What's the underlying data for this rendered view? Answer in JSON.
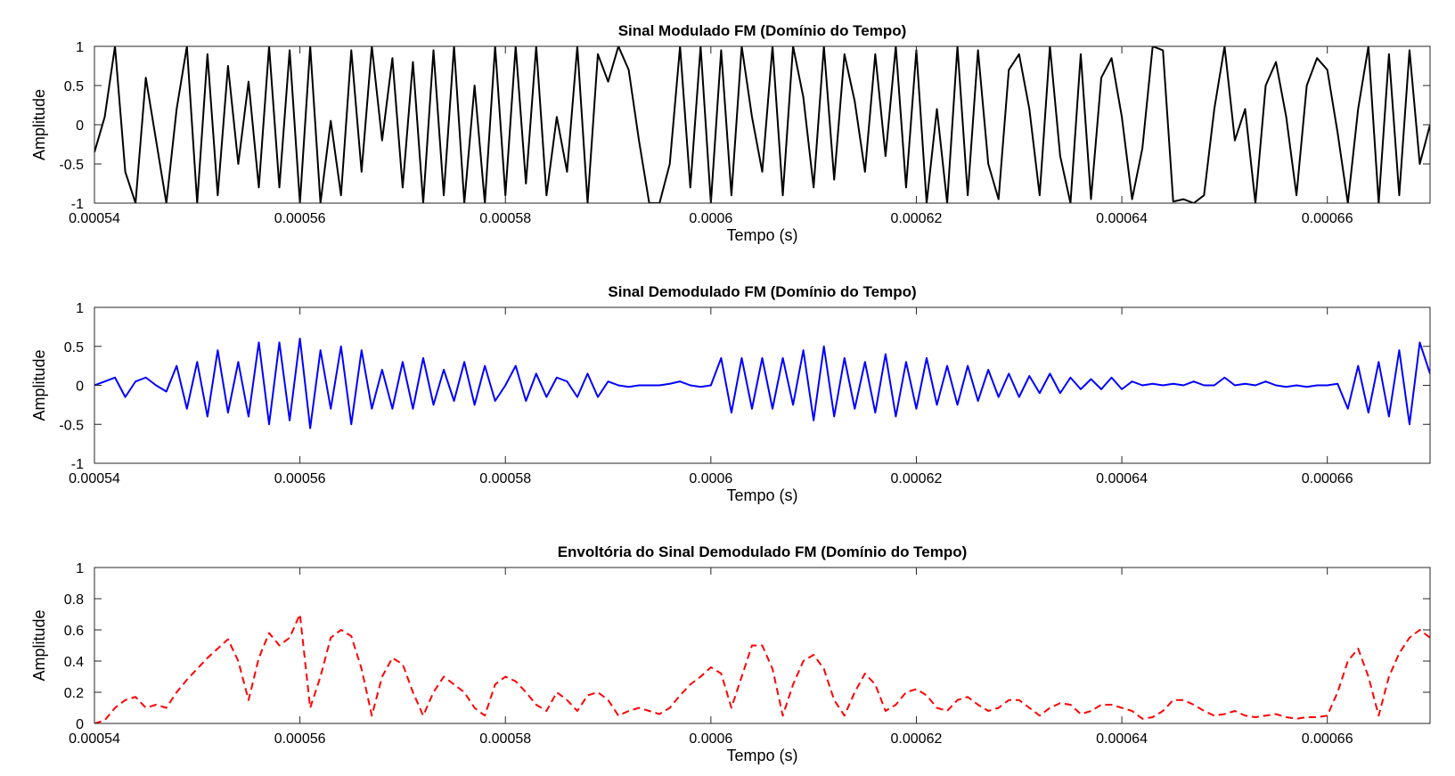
{
  "chart_data": [
    {
      "type": "line",
      "title": "Sinal Modulado FM (Domínio do Tempo)",
      "xlabel": "Tempo (s)",
      "ylabel": "Amplitude",
      "xlim": [
        0.00054,
        0.00067
      ],
      "ylim": [
        -1,
        1
      ],
      "x_ticks": [
        0.00054,
        0.00056,
        0.00058,
        0.0006,
        0.00062,
        0.00064,
        0.00066
      ],
      "x_tick_labels": [
        "0.00054",
        "0.00056",
        "0.00058",
        "0.0006",
        "0.00062",
        "0.00064",
        "0.00066"
      ],
      "y_ticks": [
        -1,
        -0.5,
        0,
        0.5,
        1
      ],
      "y_tick_labels": [
        "-1",
        "-0.5",
        "0",
        "0.5",
        "1"
      ],
      "grid": false,
      "series": [
        {
          "color": "#000000",
          "style": "solid",
          "x": [
            0.00054,
            0.000541,
            0.000542,
            0.000543,
            0.000544,
            0.000545,
            0.000546,
            0.000547,
            0.000548,
            0.000549,
            0.00055,
            0.000551,
            0.000552,
            0.000553,
            0.000554,
            0.000555,
            0.000556,
            0.000557,
            0.000558,
            0.000559,
            0.00056,
            0.000561,
            0.000562,
            0.000563,
            0.000564,
            0.000565,
            0.000566,
            0.000567,
            0.000568,
            0.000569,
            0.00057,
            0.000571,
            0.000572,
            0.000573,
            0.000574,
            0.000575,
            0.000576,
            0.000577,
            0.000578,
            0.000579,
            0.00058,
            0.000581,
            0.000582,
            0.000583,
            0.000584,
            0.000585,
            0.000586,
            0.000587,
            0.000588,
            0.000589,
            0.00059,
            0.000591,
            0.000592,
            0.000593,
            0.000594,
            0.000595,
            0.000596,
            0.000597,
            0.000598,
            0.000599,
            0.0006,
            0.000601,
            0.000602,
            0.000603,
            0.000604,
            0.000605,
            0.000606,
            0.000607,
            0.000608,
            0.000609,
            0.00061,
            0.000611,
            0.000612,
            0.000613,
            0.000614,
            0.000615,
            0.000616,
            0.000617,
            0.000618,
            0.000619,
            0.00062,
            0.000621,
            0.000622,
            0.000623,
            0.000624,
            0.000625,
            0.000626,
            0.000627,
            0.000628,
            0.000629,
            0.00063,
            0.000631,
            0.000632,
            0.000633,
            0.000634,
            0.000635,
            0.000636,
            0.000637,
            0.000638,
            0.000639,
            0.00064,
            0.000641,
            0.000642,
            0.000643,
            0.000644,
            0.000645,
            0.000646,
            0.000647,
            0.000648,
            0.000649,
            0.00065,
            0.000651,
            0.000652,
            0.000653,
            0.000654,
            0.000655,
            0.000656,
            0.000657,
            0.000658,
            0.000659,
            0.00066,
            0.000661,
            0.000662,
            0.000663,
            0.000664,
            0.000665,
            0.000666,
            0.000667,
            0.000668,
            0.000669,
            0.00067
          ],
          "y": [
            -0.35,
            0.1,
            1.0,
            -0.6,
            -1.0,
            0.6,
            -0.2,
            -1.0,
            0.2,
            1.0,
            -1.0,
            0.9,
            -0.9,
            0.75,
            -0.5,
            0.55,
            -0.8,
            1.0,
            -0.8,
            0.95,
            -1.0,
            1.0,
            -1.0,
            0.05,
            -0.9,
            0.95,
            -0.6,
            1.0,
            -0.2,
            0.85,
            -0.8,
            0.8,
            -1.0,
            0.95,
            -0.9,
            1.0,
            -1.0,
            0.5,
            -1.0,
            1.0,
            -0.9,
            1.0,
            -0.75,
            1.0,
            -0.9,
            0.1,
            -0.6,
            1.0,
            -1.0,
            0.9,
            0.55,
            1.0,
            0.7,
            -0.2,
            -1.0,
            -1.0,
            -0.5,
            1.0,
            -0.8,
            1.0,
            -1.0,
            0.95,
            -0.9,
            1.0,
            0.1,
            -0.6,
            1.0,
            -0.9,
            1.0,
            0.35,
            -0.8,
            1.0,
            -0.7,
            0.9,
            0.3,
            -0.6,
            0.9,
            -0.4,
            1.0,
            -0.8,
            0.95,
            -1.0,
            0.2,
            -1.0,
            1.0,
            -0.9,
            0.95,
            -0.5,
            -0.95,
            0.7,
            0.9,
            0.2,
            -0.9,
            1.0,
            -0.4,
            -1.0,
            0.9,
            -0.95,
            0.6,
            0.85,
            0.1,
            -0.95,
            -0.3,
            1.0,
            0.95,
            -0.98,
            -0.95,
            -1.0,
            -0.9,
            0.2,
            1.0,
            -0.2,
            0.2,
            -1.0,
            0.5,
            0.8,
            0.1,
            -0.9,
            0.5,
            0.85,
            0.7,
            -0.1,
            -1.0,
            0.2,
            1.0,
            -1.0,
            0.9,
            -0.9,
            0.95,
            -0.5,
            0.0
          ]
        }
      ]
    },
    {
      "type": "line",
      "title": "Sinal Demodulado FM (Domínio do Tempo)",
      "xlabel": "Tempo (s)",
      "ylabel": "Amplitude",
      "xlim": [
        0.00054,
        0.00067
      ],
      "ylim": [
        -1,
        1
      ],
      "x_ticks": [
        0.00054,
        0.00056,
        0.00058,
        0.0006,
        0.00062,
        0.00064,
        0.00066
      ],
      "x_tick_labels": [
        "0.00054",
        "0.00056",
        "0.00058",
        "0.0006",
        "0.00062",
        "0.00064",
        "0.00066"
      ],
      "y_ticks": [
        -1,
        -0.5,
        0,
        0.5,
        1
      ],
      "y_tick_labels": [
        "-1",
        "-0.5",
        "0",
        "0.5",
        "1"
      ],
      "grid": false,
      "series": [
        {
          "color": "#0000ff",
          "style": "solid",
          "x": [
            0.00054,
            0.000541,
            0.000542,
            0.000543,
            0.000544,
            0.000545,
            0.000546,
            0.000547,
            0.000548,
            0.000549,
            0.00055,
            0.000551,
            0.000552,
            0.000553,
            0.000554,
            0.000555,
            0.000556,
            0.000557,
            0.000558,
            0.000559,
            0.00056,
            0.000561,
            0.000562,
            0.000563,
            0.000564,
            0.000565,
            0.000566,
            0.000567,
            0.000568,
            0.000569,
            0.00057,
            0.000571,
            0.000572,
            0.000573,
            0.000574,
            0.000575,
            0.000576,
            0.000577,
            0.000578,
            0.000579,
            0.00058,
            0.000581,
            0.000582,
            0.000583,
            0.000584,
            0.000585,
            0.000586,
            0.000587,
            0.000588,
            0.000589,
            0.00059,
            0.000591,
            0.000592,
            0.000593,
            0.000594,
            0.000595,
            0.000596,
            0.000597,
            0.000598,
            0.000599,
            0.0006,
            0.000601,
            0.000602,
            0.000603,
            0.000604,
            0.000605,
            0.000606,
            0.000607,
            0.000608,
            0.000609,
            0.00061,
            0.000611,
            0.000612,
            0.000613,
            0.000614,
            0.000615,
            0.000616,
            0.000617,
            0.000618,
            0.000619,
            0.00062,
            0.000621,
            0.000622,
            0.000623,
            0.000624,
            0.000625,
            0.000626,
            0.000627,
            0.000628,
            0.000629,
            0.00063,
            0.000631,
            0.000632,
            0.000633,
            0.000634,
            0.000635,
            0.000636,
            0.000637,
            0.000638,
            0.000639,
            0.00064,
            0.000641,
            0.000642,
            0.000643,
            0.000644,
            0.000645,
            0.000646,
            0.000647,
            0.000648,
            0.000649,
            0.00065,
            0.000651,
            0.000652,
            0.000653,
            0.000654,
            0.000655,
            0.000656,
            0.000657,
            0.000658,
            0.000659,
            0.00066,
            0.000661,
            0.000662,
            0.000663,
            0.000664,
            0.000665,
            0.000666,
            0.000667,
            0.000668,
            0.000669,
            0.00067
          ],
          "y": [
            0.0,
            0.05,
            0.1,
            -0.15,
            0.05,
            0.1,
            0.0,
            -0.08,
            0.25,
            -0.3,
            0.3,
            -0.4,
            0.45,
            -0.35,
            0.3,
            -0.4,
            0.55,
            -0.5,
            0.55,
            -0.45,
            0.6,
            -0.55,
            0.45,
            -0.3,
            0.5,
            -0.5,
            0.45,
            -0.3,
            0.2,
            -0.3,
            0.3,
            -0.3,
            0.35,
            -0.25,
            0.2,
            -0.2,
            0.3,
            -0.25,
            0.25,
            -0.2,
            0.0,
            0.25,
            -0.2,
            0.15,
            -0.15,
            0.1,
            0.05,
            -0.15,
            0.15,
            -0.15,
            0.05,
            0.0,
            -0.02,
            0.0,
            0.0,
            0.0,
            0.02,
            0.05,
            0.0,
            -0.02,
            0.0,
            0.35,
            -0.35,
            0.35,
            -0.3,
            0.35,
            -0.3,
            0.35,
            -0.25,
            0.45,
            -0.45,
            0.5,
            -0.4,
            0.35,
            -0.3,
            0.3,
            -0.35,
            0.4,
            -0.4,
            0.3,
            -0.3,
            0.35,
            -0.25,
            0.25,
            -0.25,
            0.25,
            -0.2,
            0.2,
            -0.15,
            0.15,
            -0.15,
            0.12,
            -0.1,
            0.15,
            -0.1,
            0.1,
            -0.05,
            0.08,
            -0.05,
            0.1,
            -0.05,
            0.05,
            0.0,
            0.02,
            0.0,
            0.02,
            0.0,
            0.05,
            0.0,
            0.0,
            0.1,
            0.0,
            0.02,
            0.0,
            0.05,
            0.0,
            -0.02,
            0.0,
            -0.02,
            0.0,
            0.0,
            0.02,
            -0.3,
            0.25,
            -0.35,
            0.3,
            -0.4,
            0.45,
            -0.5,
            0.55,
            0.15
          ]
        }
      ]
    },
    {
      "type": "line",
      "title": "Envoltória do Sinal Demodulado FM (Domínio do Tempo)",
      "xlabel": "Tempo (s)",
      "ylabel": "Amplitude",
      "xlim": [
        0.00054,
        0.00067
      ],
      "ylim": [
        0,
        1
      ],
      "x_ticks": [
        0.00054,
        0.00056,
        0.00058,
        0.0006,
        0.00062,
        0.00064,
        0.00066
      ],
      "x_tick_labels": [
        "0.00054",
        "0.00056",
        "0.00058",
        "0.0006",
        "0.00062",
        "0.00064",
        "0.00066"
      ],
      "y_ticks": [
        0,
        0.2,
        0.4,
        0.6,
        0.8,
        1
      ],
      "y_tick_labels": [
        "0",
        "0.2",
        "0.4",
        "0.6",
        "0.8",
        "1"
      ],
      "grid": false,
      "series": [
        {
          "color": "#ff0000",
          "style": "dashed",
          "x": [
            0.00054,
            0.000541,
            0.000542,
            0.000543,
            0.000544,
            0.000545,
            0.000546,
            0.000547,
            0.000548,
            0.000549,
            0.00055,
            0.000551,
            0.000552,
            0.000553,
            0.000554,
            0.000555,
            0.000556,
            0.000557,
            0.000558,
            0.000559,
            0.00056,
            0.000561,
            0.000562,
            0.000563,
            0.000564,
            0.000565,
            0.000566,
            0.000567,
            0.000568,
            0.000569,
            0.00057,
            0.000571,
            0.000572,
            0.000573,
            0.000574,
            0.000575,
            0.000576,
            0.000577,
            0.000578,
            0.000579,
            0.00058,
            0.000581,
            0.000582,
            0.000583,
            0.000584,
            0.000585,
            0.000586,
            0.000587,
            0.000588,
            0.000589,
            0.00059,
            0.000591,
            0.000592,
            0.000593,
            0.000594,
            0.000595,
            0.000596,
            0.000597,
            0.000598,
            0.000599,
            0.0006,
            0.000601,
            0.000602,
            0.000603,
            0.000604,
            0.000605,
            0.000606,
            0.000607,
            0.000608,
            0.000609,
            0.00061,
            0.000611,
            0.000612,
            0.000613,
            0.000614,
            0.000615,
            0.000616,
            0.000617,
            0.000618,
            0.000619,
            0.00062,
            0.000621,
            0.000622,
            0.000623,
            0.000624,
            0.000625,
            0.000626,
            0.000627,
            0.000628,
            0.000629,
            0.00063,
            0.000631,
            0.000632,
            0.000633,
            0.000634,
            0.000635,
            0.000636,
            0.000637,
            0.000638,
            0.000639,
            0.00064,
            0.000641,
            0.000642,
            0.000643,
            0.000644,
            0.000645,
            0.000646,
            0.000647,
            0.000648,
            0.000649,
            0.00065,
            0.000651,
            0.000652,
            0.000653,
            0.000654,
            0.000655,
            0.000656,
            0.000657,
            0.000658,
            0.000659,
            0.00066,
            0.000661,
            0.000662,
            0.000663,
            0.000664,
            0.000665,
            0.000666,
            0.000667,
            0.000668,
            0.000669,
            0.00067
          ],
          "y": [
            0.0,
            0.02,
            0.1,
            0.15,
            0.17,
            0.1,
            0.12,
            0.1,
            0.2,
            0.28,
            0.35,
            0.42,
            0.48,
            0.54,
            0.4,
            0.15,
            0.42,
            0.58,
            0.5,
            0.55,
            0.7,
            0.1,
            0.3,
            0.55,
            0.6,
            0.56,
            0.35,
            0.05,
            0.3,
            0.42,
            0.38,
            0.2,
            0.05,
            0.2,
            0.3,
            0.25,
            0.2,
            0.1,
            0.05,
            0.25,
            0.3,
            0.27,
            0.2,
            0.12,
            0.08,
            0.2,
            0.15,
            0.08,
            0.18,
            0.2,
            0.15,
            0.05,
            0.08,
            0.1,
            0.08,
            0.06,
            0.1,
            0.18,
            0.25,
            0.3,
            0.36,
            0.32,
            0.1,
            0.3,
            0.5,
            0.5,
            0.35,
            0.05,
            0.25,
            0.4,
            0.44,
            0.35,
            0.15,
            0.05,
            0.2,
            0.32,
            0.25,
            0.08,
            0.12,
            0.2,
            0.22,
            0.18,
            0.1,
            0.08,
            0.15,
            0.17,
            0.12,
            0.08,
            0.1,
            0.15,
            0.15,
            0.1,
            0.05,
            0.1,
            0.13,
            0.12,
            0.06,
            0.08,
            0.12,
            0.12,
            0.1,
            0.08,
            0.03,
            0.04,
            0.08,
            0.15,
            0.15,
            0.12,
            0.08,
            0.05,
            0.06,
            0.08,
            0.05,
            0.04,
            0.05,
            0.06,
            0.04,
            0.03,
            0.04,
            0.04,
            0.05,
            0.2,
            0.4,
            0.48,
            0.3,
            0.05,
            0.3,
            0.45,
            0.55,
            0.6,
            0.55
          ]
        }
      ]
    }
  ]
}
